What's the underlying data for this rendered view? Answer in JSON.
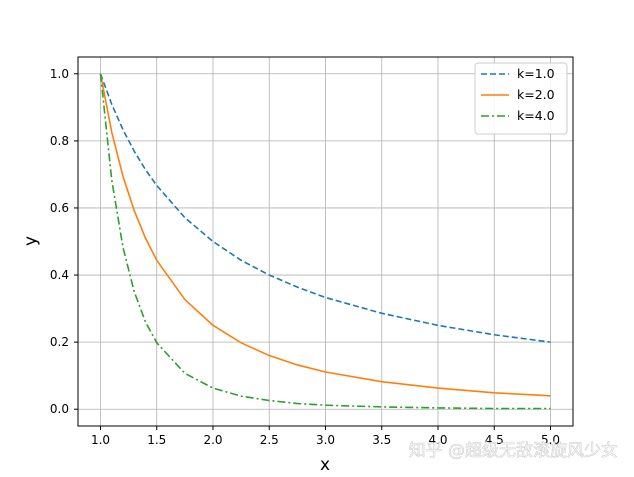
{
  "chart_data": {
    "type": "line",
    "title": "",
    "xlabel": "x",
    "ylabel": "y",
    "xlim": [
      0.8,
      5.2
    ],
    "ylim": [
      -0.05,
      1.05
    ],
    "xticks": [
      1.0,
      1.5,
      2.0,
      2.5,
      3.0,
      3.5,
      4.0,
      4.5,
      5.0
    ],
    "yticks": [
      0.0,
      0.2,
      0.4,
      0.6,
      0.8,
      1.0
    ],
    "xtick_labels": [
      "1.0",
      "1.5",
      "2.0",
      "2.5",
      "3.0",
      "3.5",
      "4.0",
      "4.5",
      "5.0"
    ],
    "ytick_labels": [
      "0.0",
      "0.2",
      "0.4",
      "0.6",
      "0.8",
      "1.0"
    ],
    "grid": true,
    "legend_position": "top-right",
    "x": [
      1.0,
      1.1,
      1.2,
      1.3,
      1.4,
      1.5,
      1.75,
      2.0,
      2.25,
      2.5,
      2.75,
      3.0,
      3.5,
      4.0,
      4.5,
      5.0
    ],
    "series": [
      {
        "name": "k=1.0",
        "color": "#1f77b4",
        "linestyle": "dashed",
        "values": [
          1.0,
          0.909,
          0.833,
          0.769,
          0.714,
          0.667,
          0.571,
          0.5,
          0.444,
          0.4,
          0.364,
          0.333,
          0.286,
          0.25,
          0.222,
          0.2
        ]
      },
      {
        "name": "k=2.0",
        "color": "#ff7f0e",
        "linestyle": "solid",
        "values": [
          1.0,
          0.826,
          0.694,
          0.592,
          0.51,
          0.444,
          0.327,
          0.25,
          0.198,
          0.16,
          0.132,
          0.111,
          0.082,
          0.063,
          0.049,
          0.04
        ]
      },
      {
        "name": "k=4.0",
        "color": "#2ca02c",
        "linestyle": "dashdot",
        "values": [
          1.0,
          0.683,
          0.482,
          0.35,
          0.26,
          0.198,
          0.107,
          0.063,
          0.039,
          0.026,
          0.017,
          0.012,
          0.007,
          0.004,
          0.002,
          0.002
        ]
      }
    ]
  },
  "watermark": "知乎 @超级无敌滚旋风少女"
}
